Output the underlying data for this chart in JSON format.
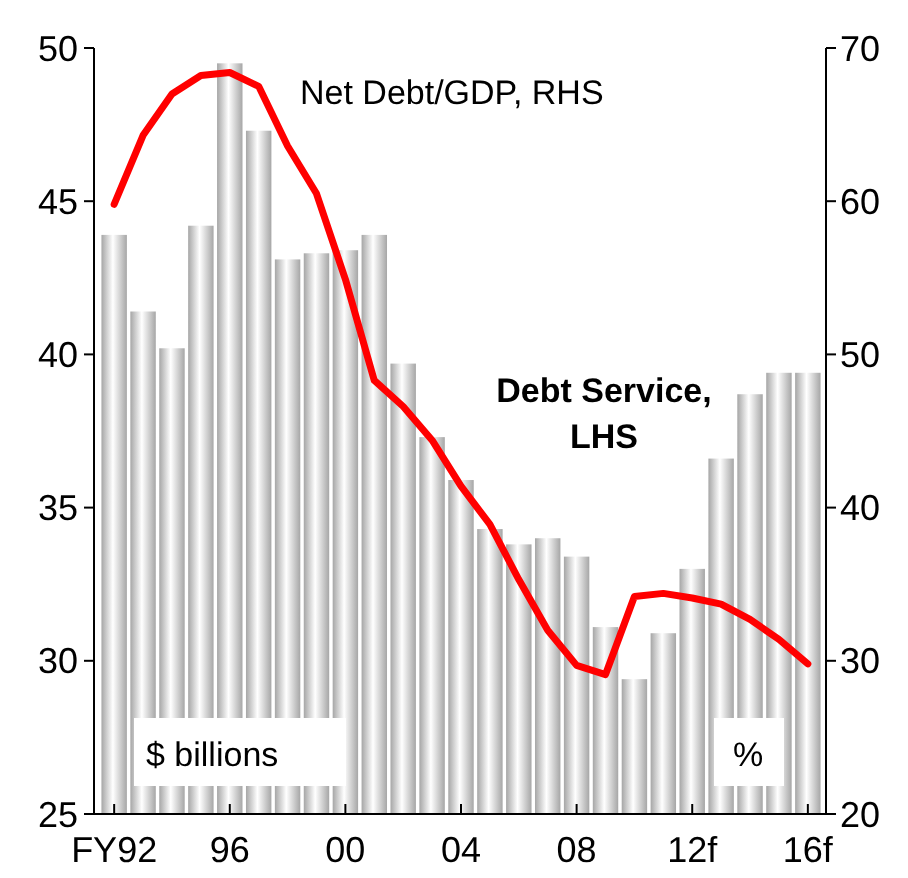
{
  "chart_data": {
    "type": "bar",
    "categories": [
      "FY92",
      null,
      null,
      null,
      "96",
      null,
      null,
      null,
      "00",
      null,
      null,
      null,
      "04",
      null,
      null,
      null,
      "08",
      null,
      null,
      null,
      "12f",
      null,
      null,
      null,
      "16f"
    ],
    "ylabel": "$ billions",
    "y2label": "%",
    "series": [
      {
        "name": "Debt Service, LHS",
        "color": "#a6a6a6",
        "values": [
          43.9,
          41.4,
          40.2,
          44.2,
          49.5,
          47.3,
          43.1,
          43.3,
          43.4,
          43.9,
          39.7,
          37.3,
          35.9,
          34.3,
          33.8,
          34.0,
          33.4,
          31.1,
          29.4,
          30.9,
          33.0,
          36.6,
          38.7,
          39.4,
          39.4
        ]
      },
      {
        "name": "Net Debt/GDP, RHS",
        "type": "line",
        "axis": "y2",
        "color": "#ff0000",
        "values": [
          59.8,
          64.3,
          67.0,
          68.2,
          68.4,
          67.5,
          63.6,
          60.5,
          54.9,
          48.3,
          46.6,
          44.4,
          41.4,
          38.9,
          35.3,
          32.0,
          29.7,
          29.1,
          34.2,
          34.4,
          34.1,
          33.7,
          32.7,
          31.4,
          29.8
        ]
      }
    ],
    "ylim": [
      25,
      50
    ],
    "yticks": [
      25,
      30,
      35,
      40,
      45,
      50
    ],
    "y2lim": [
      20,
      70
    ],
    "y2ticks": [
      20,
      30,
      40,
      50,
      60,
      70
    ],
    "grid": false,
    "marker": "none",
    "line_style": "solid"
  }
}
